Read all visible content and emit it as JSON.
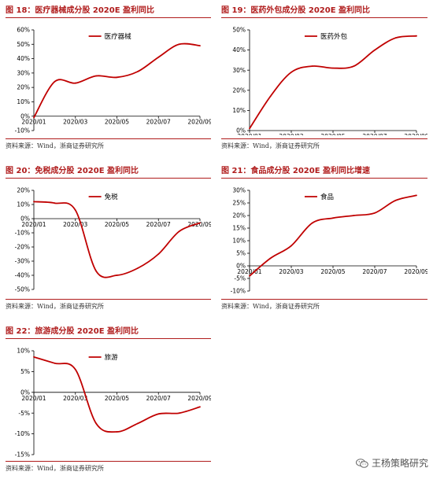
{
  "colors": {
    "accent": "#b01c1c",
    "line": "#c00000",
    "axis": "#000000"
  },
  "source_label": "资料来源：Wind，浙商证券研究所",
  "watermark": {
    "icon": "wechat-icon",
    "text": "王杨策略研究"
  },
  "chart_data": [
    {
      "type": "line",
      "title": "图 18：医疗器械成分股 2020E 盈利同比",
      "x": [
        "2020/01",
        "2020/02",
        "2020/03",
        "2020/04",
        "2020/05",
        "2020/06",
        "2020/07",
        "2020/08",
        "2020/09"
      ],
      "x_ticks": [
        "2020/01",
        "2020/03",
        "2020/05",
        "2020/07",
        "2020/09"
      ],
      "series": [
        {
          "name": "医疗器械",
          "values": [
            -1,
            24,
            23,
            28,
            27,
            31,
            41,
            50,
            49
          ]
        }
      ],
      "ylim": [
        -10,
        60
      ],
      "yticks": [
        -10,
        0,
        10,
        20,
        30,
        40,
        50,
        60
      ],
      "xaxis_at": 0,
      "ytick_suffix": "%",
      "legend": "top-center",
      "grid": false
    },
    {
      "type": "line",
      "title": "图 19：医药外包成分股 2020E 盈利同比",
      "x": [
        "2020/01",
        "2020/02",
        "2020/03",
        "2020/04",
        "2020/05",
        "2020/06",
        "2020/07",
        "2020/08",
        "2020/09"
      ],
      "x_ticks": [
        "2020/01",
        "2020/03",
        "2020/05",
        "2020/07",
        "2020/09"
      ],
      "series": [
        {
          "name": "医药外包",
          "values": [
            1,
            17,
            29,
            32,
            31,
            32,
            40,
            46,
            47
          ]
        }
      ],
      "ylim": [
        0,
        50
      ],
      "yticks": [
        0,
        10,
        20,
        30,
        40,
        50
      ],
      "xaxis_at": 0,
      "ytick_suffix": "%",
      "legend": "top-center",
      "grid": false
    },
    {
      "type": "line",
      "title": "图 20：免税成分股 2020E 盈利同比",
      "x": [
        "2020/01",
        "2020/02",
        "2020/03",
        "2020/04",
        "2020/05",
        "2020/06",
        "2020/07",
        "2020/08",
        "2020/09"
      ],
      "x_ticks": [
        "2020/01",
        "2020/03",
        "2020/05",
        "2020/07",
        "2020/09"
      ],
      "series": [
        {
          "name": "免税",
          "values": [
            12,
            11,
            6,
            -37,
            -40,
            -35,
            -25,
            -9,
            -3
          ]
        }
      ],
      "ylim": [
        -50,
        20
      ],
      "yticks": [
        -50,
        -40,
        -30,
        -20,
        -10,
        0,
        10,
        20
      ],
      "xaxis_at": 0,
      "ytick_suffix": "%",
      "legend": "top-center",
      "grid": false
    },
    {
      "type": "line",
      "title": "图 21：食品成分股 2020E 盈利同比增速",
      "x": [
        "2020/01",
        "2020/02",
        "2020/03",
        "2020/04",
        "2020/05",
        "2020/06",
        "2020/07",
        "2020/08",
        "2020/09"
      ],
      "x_ticks": [
        "2020/01",
        "2020/03",
        "2020/05",
        "2020/07",
        "2020/09"
      ],
      "series": [
        {
          "name": "食品",
          "values": [
            -4,
            3,
            8,
            17,
            19,
            20,
            21,
            26,
            28
          ]
        }
      ],
      "ylim": [
        -10,
        30
      ],
      "yticks": [
        -10,
        -5,
        0,
        5,
        10,
        15,
        20,
        25,
        30
      ],
      "xaxis_at": 0,
      "ytick_suffix": "%",
      "legend": "top-center",
      "grid": false
    },
    {
      "type": "line",
      "title": "图 22：旅游成分股 2020E 盈利同比",
      "x": [
        "2020/01",
        "2020/02",
        "2020/03",
        "2020/04",
        "2020/05",
        "2020/06",
        "2020/07",
        "2020/08",
        "2020/09"
      ],
      "x_ticks": [
        "2020/01",
        "2020/03",
        "2020/05",
        "2020/07",
        "2020/09"
      ],
      "series": [
        {
          "name": "旅游",
          "values": [
            8.5,
            7,
            5.5,
            -7.5,
            -9.5,
            -7.5,
            -5.2,
            -5,
            -3.5
          ]
        }
      ],
      "ylim": [
        -15,
        10
      ],
      "yticks": [
        -15,
        -10,
        -5,
        0,
        5,
        10
      ],
      "xaxis_at": 0,
      "ytick_suffix": "%",
      "legend": "top-center",
      "grid": false
    }
  ]
}
